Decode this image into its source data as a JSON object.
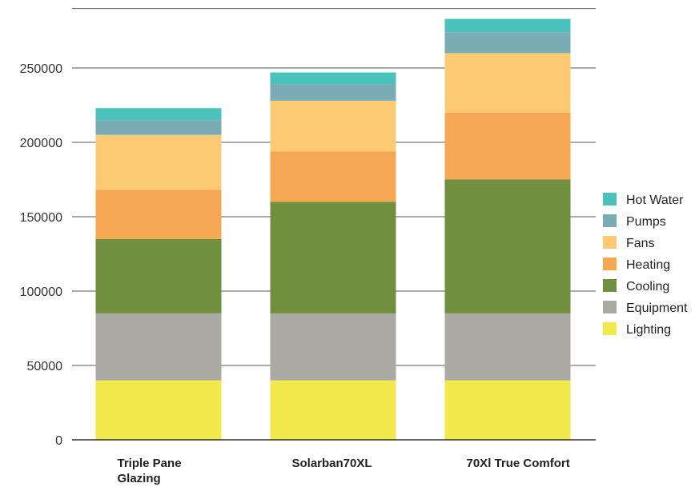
{
  "chart_data": {
    "type": "bar",
    "stacked": true,
    "categories": [
      "Triple Pane Glazing",
      "Solarban70XL",
      "70Xl True Comfort"
    ],
    "category_lines": [
      [
        "Triple Pane",
        "Glazing"
      ],
      [
        "Solarban70XL"
      ],
      [
        "70Xl True Comfort"
      ]
    ],
    "ylim": [
      0,
      290000
    ],
    "yticks": [
      0,
      50000,
      100000,
      150000,
      200000,
      250000
    ],
    "ytick_labels": [
      "0",
      "50000",
      "100000",
      "150000",
      "200000",
      "250000"
    ],
    "grid": true,
    "legend_position": "right",
    "series": [
      {
        "name": "Lighting",
        "color": "#f2ea4c",
        "values": [
          40000,
          40000,
          40000
        ]
      },
      {
        "name": "Equipment",
        "color": "#aba9a3",
        "values": [
          45000,
          45000,
          45000
        ]
      },
      {
        "name": "Cooling",
        "color": "#708f3f",
        "values": [
          50000,
          75000,
          90000
        ]
      },
      {
        "name": "Heating",
        "color": "#f6a754",
        "values": [
          33000,
          34000,
          45000
        ]
      },
      {
        "name": "Fans",
        "color": "#fcca72",
        "values": [
          37000,
          34000,
          40000
        ]
      },
      {
        "name": "Pumps",
        "color": "#7aacb5",
        "values": [
          10000,
          11000,
          14000
        ]
      },
      {
        "name": "Hot Water",
        "color": "#4cc2bd",
        "values": [
          8000,
          8000,
          9000
        ]
      }
    ],
    "legend_order": [
      "Hot Water",
      "Pumps",
      "Fans",
      "Heating",
      "Cooling",
      "Equipment",
      "Lighting"
    ]
  }
}
